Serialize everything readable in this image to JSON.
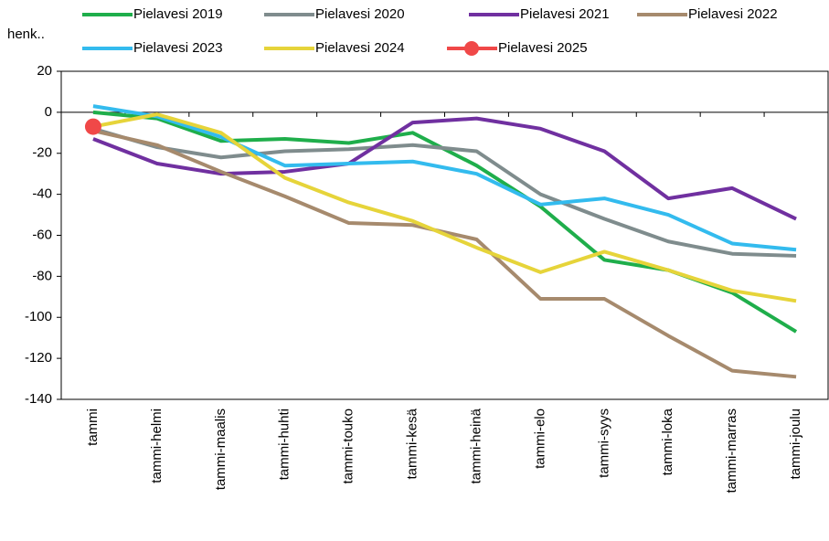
{
  "chart_data": {
    "type": "line",
    "ylabel": "henk..",
    "categories": [
      "tammi",
      "tammi-helmi",
      "tammi-maalis",
      "tammi-huhti",
      "tammi-touko",
      "tammi-kesä",
      "tammi-heinä",
      "tammi-elo",
      "tammi-syys",
      "tammi-loka",
      "tammi-marras",
      "tammi-joulu"
    ],
    "series": [
      {
        "name": "Pielavesi 2019",
        "color": "#1fae4b",
        "values": [
          0,
          -3,
          -14,
          -13,
          -15,
          -10,
          -26,
          -46,
          -72,
          -77,
          -88,
          -107
        ]
      },
      {
        "name": "Pielavesi 2020",
        "color": "#7f8c8d",
        "values": [
          -8,
          -17,
          -22,
          -19,
          -18,
          -16,
          -19,
          -40,
          -52,
          -63,
          -69,
          -70
        ]
      },
      {
        "name": "Pielavesi 2021",
        "color": "#7030a0",
        "values": [
          -13,
          -25,
          -30,
          -29,
          -25,
          -5,
          -3,
          -8,
          -19,
          -42,
          -37,
          -52
        ]
      },
      {
        "name": "Pielavesi 2022",
        "color": "#a68a6d",
        "values": [
          -9,
          -16,
          -29,
          -41,
          -54,
          -55,
          -62,
          -91,
          -91,
          -109,
          -126,
          -129
        ]
      },
      {
        "name": "Pielavesi 2023",
        "color": "#33bbee",
        "values": [
          3,
          -2,
          -12,
          -26,
          -25,
          -24,
          -30,
          -45,
          -42,
          -50,
          -64,
          -67
        ]
      },
      {
        "name": "Pielavesi 2024",
        "color": "#e6d43a",
        "values": [
          -7,
          -1,
          -10,
          -32,
          -44,
          -53,
          -66,
          -78,
          -68,
          -77,
          -87,
          -92
        ]
      },
      {
        "name": "Pielavesi 2025",
        "color": "#f04848",
        "marker": "circle",
        "values": [
          -7,
          null,
          null,
          null,
          null,
          null,
          null,
          null,
          null,
          null,
          null,
          null
        ]
      }
    ],
    "ylim": [
      -140,
      20
    ],
    "yticks": [
      -140,
      -120,
      -100,
      -80,
      -60,
      -40,
      -20,
      0,
      20
    ],
    "grid": false
  }
}
